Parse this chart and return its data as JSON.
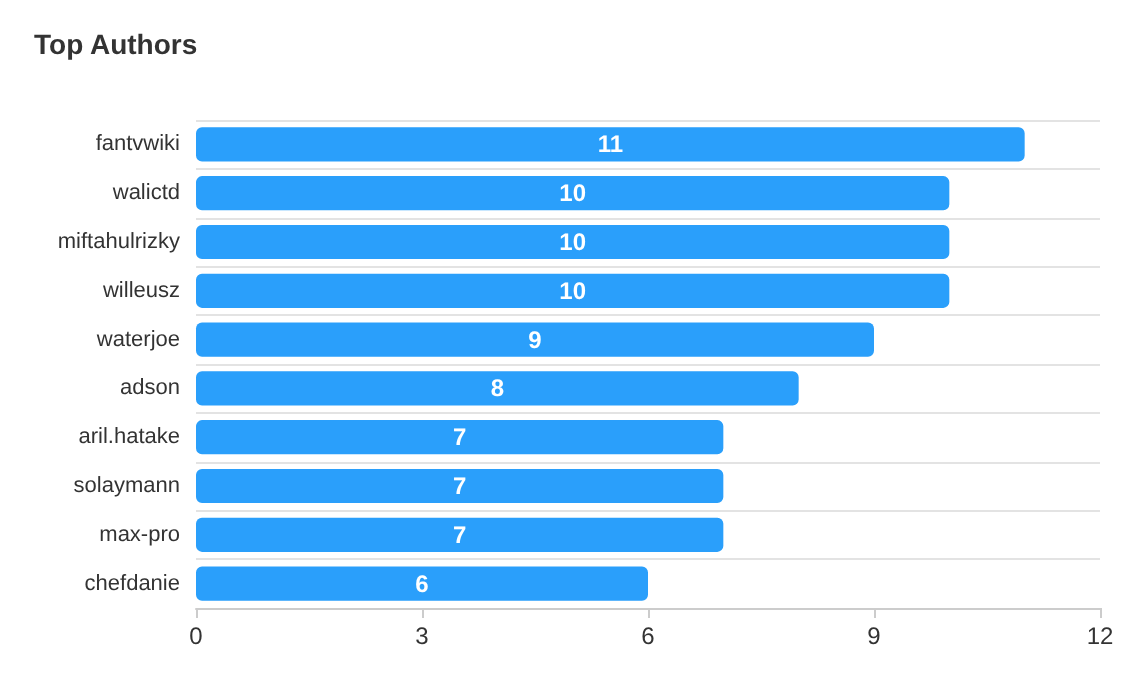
{
  "chart_data": {
    "type": "bar",
    "title": "Top Authors",
    "orientation": "horizontal",
    "categories": [
      "fantvwiki",
      "walictd",
      "miftahulrizky",
      "willeusz",
      "waterjoe",
      "adson",
      "aril.hatake",
      "solaymann",
      "max-pro",
      "chefdanie"
    ],
    "values": [
      11,
      10,
      10,
      10,
      9,
      8,
      7,
      7,
      7,
      6
    ],
    "color": "#2a9ffb",
    "xlim": [
      0,
      12
    ],
    "xticks": [
      0,
      3,
      6,
      9,
      12
    ],
    "grid": "y",
    "data_labels": true
  }
}
